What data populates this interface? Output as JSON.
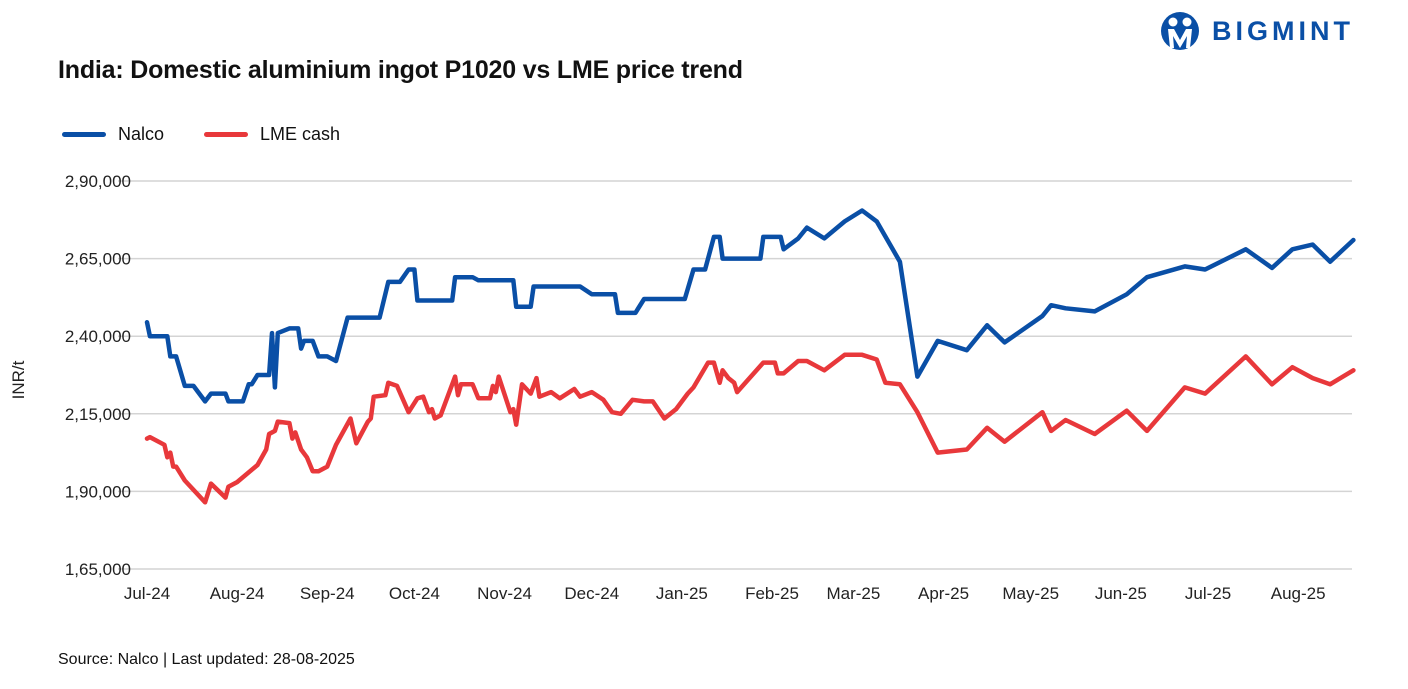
{
  "title": "India: Domestic aluminium ingot P1020 vs LME price trend",
  "logo": {
    "text": "BIGMINT",
    "color": "#0a4fa6"
  },
  "source": "Source: Nalco | Last updated: 28-08-2025",
  "chart_data": {
    "type": "line",
    "title": "India: Domestic aluminium ingot P1020 vs LME price trend",
    "ylabel": "INR/t",
    "xlabel": "",
    "ylim": [
      165000,
      290000
    ],
    "xlim": [
      "2024-07-01",
      "2025-08-20"
    ],
    "grid": "horizontal",
    "legend_placement": "top-left",
    "yticks": [
      165000,
      190000,
      215000,
      240000,
      265000,
      290000
    ],
    "ytick_labels": [
      "1,65,000",
      "1,90,000",
      "2,15,000",
      "2,40,000",
      "2,65,000",
      "2,90,000"
    ],
    "xticks": [
      "2024-07-01",
      "2024-08-01",
      "2024-09-01",
      "2024-10-01",
      "2024-11-01",
      "2024-12-01",
      "2025-01-01",
      "2025-02-01",
      "2025-03-01",
      "2025-04-01",
      "2025-05-01",
      "2025-06-01",
      "2025-07-01",
      "2025-08-01"
    ],
    "xtick_labels": [
      "Jul-24",
      "Aug-24",
      "Sep-24",
      "Oct-24",
      "Nov-24",
      "Dec-24",
      "Jan-25",
      "Feb-25",
      "Mar-25",
      "Apr-25",
      "May-25",
      "Jun-25",
      "Jul-25",
      "Aug-25"
    ],
    "series": [
      {
        "name": "Nalco",
        "color": "#0a4fa6",
        "points": [
          [
            "2024-07-01",
            244500
          ],
          [
            "2024-07-02",
            240000
          ],
          [
            "2024-07-08",
            240000
          ],
          [
            "2024-07-09",
            233500
          ],
          [
            "2024-07-11",
            233500
          ],
          [
            "2024-07-14",
            224000
          ],
          [
            "2024-07-17",
            224000
          ],
          [
            "2024-07-21",
            219000
          ],
          [
            "2024-07-23",
            221500
          ],
          [
            "2024-07-28",
            221500
          ],
          [
            "2024-07-29",
            219000
          ],
          [
            "2024-08-03",
            219000
          ],
          [
            "2024-08-05",
            224500
          ],
          [
            "2024-08-06",
            224500
          ],
          [
            "2024-08-08",
            227500
          ],
          [
            "2024-08-12",
            227500
          ],
          [
            "2024-08-13",
            241000
          ],
          [
            "2024-08-14",
            223500
          ],
          [
            "2024-08-15",
            241000
          ],
          [
            "2024-08-19",
            242500
          ],
          [
            "2024-08-22",
            242500
          ],
          [
            "2024-08-23",
            236000
          ],
          [
            "2024-08-24",
            238500
          ],
          [
            "2024-08-27",
            238500
          ],
          [
            "2024-08-29",
            233500
          ],
          [
            "2024-09-01",
            233500
          ],
          [
            "2024-09-04",
            232000
          ],
          [
            "2024-09-08",
            246000
          ],
          [
            "2024-09-19",
            246000
          ],
          [
            "2024-09-22",
            257500
          ],
          [
            "2024-09-26",
            257500
          ],
          [
            "2024-09-29",
            261500
          ],
          [
            "2024-10-01",
            261500
          ],
          [
            "2024-10-02",
            251500
          ],
          [
            "2024-10-14",
            251500
          ],
          [
            "2024-10-15",
            259000
          ],
          [
            "2024-10-21",
            259000
          ],
          [
            "2024-10-23",
            258000
          ],
          [
            "2024-11-04",
            258000
          ],
          [
            "2024-11-05",
            249500
          ],
          [
            "2024-11-10",
            249500
          ],
          [
            "2024-11-11",
            256000
          ],
          [
            "2024-11-27",
            256000
          ],
          [
            "2024-12-01",
            253500
          ],
          [
            "2024-12-09",
            253500
          ],
          [
            "2024-12-10",
            247500
          ],
          [
            "2024-12-16",
            247500
          ],
          [
            "2024-12-19",
            252000
          ],
          [
            "2025-01-02",
            252000
          ],
          [
            "2025-01-05",
            261500
          ],
          [
            "2025-01-09",
            261500
          ],
          [
            "2025-01-12",
            272000
          ],
          [
            "2025-01-14",
            272000
          ],
          [
            "2025-01-15",
            265000
          ],
          [
            "2025-01-28",
            265000
          ],
          [
            "2025-01-29",
            272000
          ],
          [
            "2025-02-04",
            272000
          ],
          [
            "2025-02-05",
            268000
          ],
          [
            "2025-02-10",
            271500
          ],
          [
            "2025-02-13",
            275000
          ],
          [
            "2025-02-19",
            271500
          ],
          [
            "2025-02-26",
            277000
          ],
          [
            "2025-03-04",
            280500
          ],
          [
            "2025-03-09",
            277000
          ],
          [
            "2025-03-17",
            264000
          ],
          [
            "2025-03-23",
            227000
          ],
          [
            "2025-03-30",
            238500
          ],
          [
            "2025-04-09",
            235500
          ],
          [
            "2025-04-16",
            243500
          ],
          [
            "2025-04-22",
            238000
          ],
          [
            "2025-05-05",
            246500
          ],
          [
            "2025-05-08",
            250000
          ],
          [
            "2025-05-13",
            249000
          ],
          [
            "2025-05-23",
            248000
          ],
          [
            "2025-06-03",
            253500
          ],
          [
            "2025-06-10",
            259000
          ],
          [
            "2025-06-23",
            262500
          ],
          [
            "2025-06-30",
            261500
          ],
          [
            "2025-07-14",
            268000
          ],
          [
            "2025-07-23",
            262000
          ],
          [
            "2025-07-30",
            268000
          ],
          [
            "2025-08-06",
            269500
          ],
          [
            "2025-08-12",
            264000
          ],
          [
            "2025-08-20",
            271000
          ]
        ]
      },
      {
        "name": "LME cash",
        "color": "#e8383b",
        "points": [
          [
            "2024-07-01",
            207000
          ],
          [
            "2024-07-02",
            207500
          ],
          [
            "2024-07-07",
            205000
          ],
          [
            "2024-07-08",
            201000
          ],
          [
            "2024-07-09",
            202500
          ],
          [
            "2024-07-10",
            198000
          ],
          [
            "2024-07-11",
            198000
          ],
          [
            "2024-07-14",
            193500
          ],
          [
            "2024-07-21",
            186500
          ],
          [
            "2024-07-23",
            192500
          ],
          [
            "2024-07-28",
            188000
          ],
          [
            "2024-07-29",
            191500
          ],
          [
            "2024-08-01",
            193000
          ],
          [
            "2024-08-08",
            198500
          ],
          [
            "2024-08-11",
            203500
          ],
          [
            "2024-08-12",
            208500
          ],
          [
            "2024-08-14",
            209500
          ],
          [
            "2024-08-15",
            212500
          ],
          [
            "2024-08-19",
            212000
          ],
          [
            "2024-08-20",
            207000
          ],
          [
            "2024-08-21",
            209000
          ],
          [
            "2024-08-23",
            203500
          ],
          [
            "2024-08-25",
            201000
          ],
          [
            "2024-08-27",
            196500
          ],
          [
            "2024-08-29",
            196500
          ],
          [
            "2024-09-01",
            198000
          ],
          [
            "2024-09-04",
            205000
          ],
          [
            "2024-09-09",
            213500
          ],
          [
            "2024-09-11",
            205500
          ],
          [
            "2024-09-15",
            212500
          ],
          [
            "2024-09-16",
            213500
          ],
          [
            "2024-09-17",
            220500
          ],
          [
            "2024-09-21",
            221000
          ],
          [
            "2024-09-22",
            225000
          ],
          [
            "2024-09-25",
            224000
          ],
          [
            "2024-09-29",
            215500
          ],
          [
            "2024-10-02",
            220000
          ],
          [
            "2024-10-04",
            220500
          ],
          [
            "2024-10-06",
            215500
          ],
          [
            "2024-10-07",
            216500
          ],
          [
            "2024-10-08",
            213500
          ],
          [
            "2024-10-10",
            214500
          ],
          [
            "2024-10-15",
            227000
          ],
          [
            "2024-10-16",
            221000
          ],
          [
            "2024-10-17",
            224500
          ],
          [
            "2024-10-21",
            224500
          ],
          [
            "2024-10-23",
            220000
          ],
          [
            "2024-10-27",
            220000
          ],
          [
            "2024-10-28",
            224000
          ],
          [
            "2024-10-29",
            222000
          ],
          [
            "2024-10-30",
            227000
          ],
          [
            "2024-11-03",
            215500
          ],
          [
            "2024-11-04",
            216500
          ],
          [
            "2024-11-05",
            211500
          ],
          [
            "2024-11-07",
            224500
          ],
          [
            "2024-11-10",
            221500
          ],
          [
            "2024-11-12",
            226500
          ],
          [
            "2024-11-13",
            220500
          ],
          [
            "2024-11-17",
            222000
          ],
          [
            "2024-11-20",
            220000
          ],
          [
            "2024-11-25",
            223000
          ],
          [
            "2024-11-27",
            220500
          ],
          [
            "2024-12-01",
            222000
          ],
          [
            "2024-12-05",
            219500
          ],
          [
            "2024-12-08",
            215500
          ],
          [
            "2024-12-11",
            215000
          ],
          [
            "2024-12-15",
            219500
          ],
          [
            "2024-12-19",
            219000
          ],
          [
            "2024-12-22",
            219000
          ],
          [
            "2024-12-26",
            213500
          ],
          [
            "2024-12-30",
            216500
          ],
          [
            "2025-01-03",
            221500
          ],
          [
            "2025-01-05",
            223500
          ],
          [
            "2025-01-10",
            231500
          ],
          [
            "2025-01-12",
            231500
          ],
          [
            "2025-01-14",
            225000
          ],
          [
            "2025-01-15",
            229000
          ],
          [
            "2025-01-17",
            226500
          ],
          [
            "2025-01-19",
            225000
          ],
          [
            "2025-01-20",
            222000
          ],
          [
            "2025-01-29",
            231500
          ],
          [
            "2025-02-02",
            231500
          ],
          [
            "2025-02-03",
            228000
          ],
          [
            "2025-02-05",
            228000
          ],
          [
            "2025-02-10",
            232000
          ],
          [
            "2025-02-13",
            232000
          ],
          [
            "2025-02-19",
            229000
          ],
          [
            "2025-02-26",
            234000
          ],
          [
            "2025-03-04",
            234000
          ],
          [
            "2025-03-09",
            232500
          ],
          [
            "2025-03-12",
            225000
          ],
          [
            "2025-03-17",
            224500
          ],
          [
            "2025-03-23",
            215500
          ],
          [
            "2025-03-30",
            202500
          ],
          [
            "2025-04-09",
            203500
          ],
          [
            "2025-04-16",
            210500
          ],
          [
            "2025-04-22",
            206000
          ],
          [
            "2025-05-05",
            215500
          ],
          [
            "2025-05-08",
            209500
          ],
          [
            "2025-05-13",
            213000
          ],
          [
            "2025-05-23",
            208500
          ],
          [
            "2025-06-03",
            216000
          ],
          [
            "2025-06-10",
            209500
          ],
          [
            "2025-06-23",
            223500
          ],
          [
            "2025-06-30",
            221500
          ],
          [
            "2025-07-14",
            233500
          ],
          [
            "2025-07-23",
            224500
          ],
          [
            "2025-07-30",
            230000
          ],
          [
            "2025-08-06",
            226500
          ],
          [
            "2025-08-12",
            224500
          ],
          [
            "2025-08-20",
            229000
          ]
        ]
      }
    ]
  }
}
